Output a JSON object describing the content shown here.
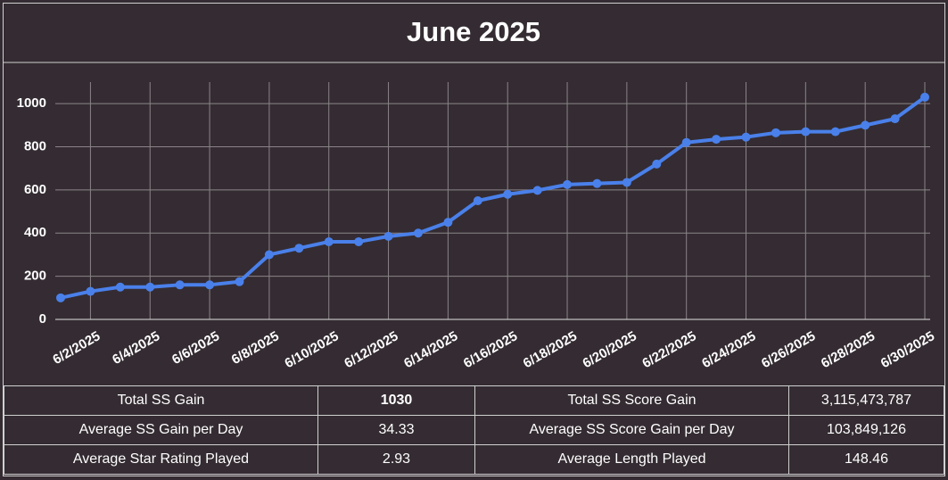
{
  "chart_data": {
    "type": "line",
    "title": "June 2025",
    "categories": [
      null,
      "6/2/2025",
      null,
      "6/4/2025",
      null,
      "6/6/2025",
      null,
      "6/8/2025",
      null,
      "6/10/2025",
      null,
      "6/12/2025",
      null,
      "6/14/2025",
      null,
      "6/16/2025",
      null,
      "6/18/2025",
      null,
      "6/20/2025",
      null,
      "6/22/2025",
      null,
      "6/24/2025",
      null,
      "6/26/2025",
      null,
      "6/28/2025",
      null,
      "6/30/2025"
    ],
    "series": [
      {
        "color": "#4a80ea",
        "values": [
          100,
          130,
          150,
          150,
          160,
          160,
          175,
          300,
          330,
          360,
          360,
          385,
          400,
          450,
          550,
          580,
          598,
          625,
          630,
          635,
          720,
          820,
          835,
          845,
          865,
          870,
          870,
          900,
          930,
          1030
        ]
      }
    ],
    "ylim": [
      0,
      1100
    ],
    "yticks": [
      0,
      200,
      400,
      600,
      800,
      1000
    ],
    "grid": true
  },
  "table": {
    "rows": [
      [
        "Total SS Gain",
        "1030",
        "Total SS Score Gain",
        "3,115,473,787"
      ],
      [
        "Average SS Gain per Day",
        "34.33",
        "Average SS Score Gain per Day",
        "103,849,126"
      ],
      [
        "Average Star Rating Played",
        "2.93",
        "Average Length Played",
        "148.46"
      ]
    ]
  }
}
